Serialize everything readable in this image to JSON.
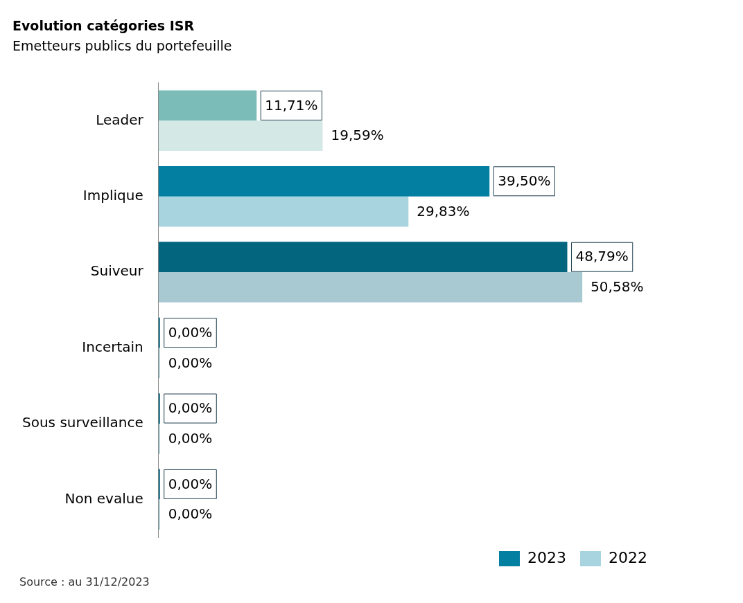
{
  "chart_data": {
    "type": "bar",
    "orientation": "horizontal",
    "title": "Evolution catégories ISR",
    "subtitle": "Emetteurs publics du portefeuille",
    "categories": [
      "Leader",
      "Implique",
      "Suiveur",
      "Incertain",
      "Sous surveillance",
      "Non evalue"
    ],
    "series": [
      {
        "name": "2023",
        "color": "#037fa1",
        "colors": [
          "#7bbcb8",
          "#037fa1",
          "#03657e",
          "#03657e",
          "#03657e",
          "#03657e"
        ],
        "values": [
          11.71,
          39.5,
          48.79,
          0,
          0,
          0
        ],
        "value_labels": [
          "11,71%",
          "39,50%",
          "48,79%",
          "0,00%",
          "0,00%",
          "0,00%"
        ]
      },
      {
        "name": "2022",
        "color": "#a8d4e0",
        "colors": [
          "#d4e8e6",
          "#a8d4e0",
          "#a8c9d2",
          "#a8c9d2",
          "#a8c9d2",
          "#a8c9d2"
        ],
        "values": [
          19.59,
          29.83,
          50.58,
          0,
          0,
          0
        ],
        "value_labels": [
          "19,59%",
          "29,83%",
          "50,58%",
          "0,00%",
          "0,00%",
          "0,00%"
        ]
      }
    ],
    "legend": "bottom right",
    "grid": false,
    "tick_labels": "y",
    "annotations": [
      "Source : au 31/12/2023"
    ]
  }
}
